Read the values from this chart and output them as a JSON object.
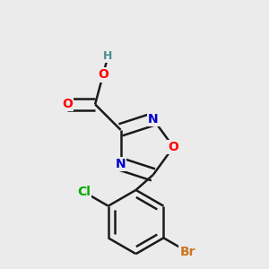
{
  "background_color": "#ebebeb",
  "bond_color": "#1a1a1a",
  "bond_width": 1.8,
  "atom_colors": {
    "O": "#ff0000",
    "N": "#0000cc",
    "Cl": "#00aa00",
    "Br": "#cc7722",
    "H": "#4a9090",
    "C": "#1a1a1a"
  },
  "font_size": 10
}
